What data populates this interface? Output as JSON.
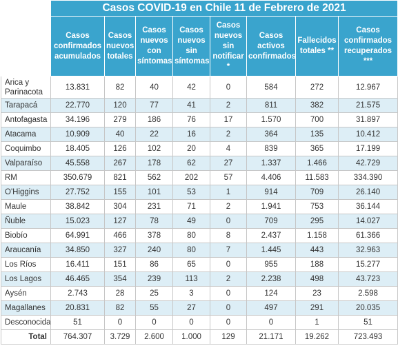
{
  "title": "Casos COVID-19 en Chile 11 de Febrero de 2021",
  "headers": [
    "Casos confirmados acumulados",
    "Casos nuevos totales",
    "Casos nuevos con síntomas",
    "Casos nuevos sin síntomas",
    "Casos nuevos sin notificar *",
    "Casos activos confirmados",
    "Fallecidos totales **",
    "Casos confirmados recuperados ***"
  ],
  "rows": [
    {
      "region": "Arica y Parinacota",
      "values": [
        "13.831",
        "82",
        "40",
        "42",
        "0",
        "584",
        "272",
        "12.967"
      ]
    },
    {
      "region": "Tarapacá",
      "values": [
        "22.770",
        "120",
        "77",
        "41",
        "2",
        "811",
        "382",
        "21.575"
      ]
    },
    {
      "region": "Antofagasta",
      "values": [
        "34.196",
        "279",
        "186",
        "76",
        "17",
        "1.570",
        "700",
        "31.897"
      ]
    },
    {
      "region": "Atacama",
      "values": [
        "10.909",
        "40",
        "22",
        "16",
        "2",
        "364",
        "135",
        "10.412"
      ]
    },
    {
      "region": "Coquimbo",
      "values": [
        "18.405",
        "126",
        "102",
        "20",
        "4",
        "839",
        "365",
        "17.199"
      ]
    },
    {
      "region": "Valparaíso",
      "values": [
        "45.558",
        "267",
        "178",
        "62",
        "27",
        "1.337",
        "1.466",
        "42.729"
      ]
    },
    {
      "region": "RM",
      "values": [
        "350.679",
        "821",
        "562",
        "202",
        "57",
        "4.406",
        "11.583",
        "334.390"
      ]
    },
    {
      "region": "O'Higgins",
      "values": [
        "27.752",
        "155",
        "101",
        "53",
        "1",
        "914",
        "709",
        "26.140"
      ]
    },
    {
      "region": "Maule",
      "values": [
        "38.842",
        "304",
        "231",
        "71",
        "2",
        "1.941",
        "753",
        "36.144"
      ]
    },
    {
      "region": "Ñuble",
      "values": [
        "15.023",
        "127",
        "78",
        "49",
        "0",
        "709",
        "295",
        "14.027"
      ]
    },
    {
      "region": "Biobío",
      "values": [
        "64.991",
        "466",
        "378",
        "80",
        "8",
        "2.437",
        "1.158",
        "61.366"
      ]
    },
    {
      "region": "Araucanía",
      "values": [
        "34.850",
        "327",
        "240",
        "80",
        "7",
        "1.445",
        "443",
        "32.963"
      ]
    },
    {
      "region": "Los Ríos",
      "values": [
        "16.411",
        "151",
        "86",
        "65",
        "0",
        "955",
        "188",
        "15.277"
      ]
    },
    {
      "region": "Los Lagos",
      "values": [
        "46.465",
        "354",
        "239",
        "113",
        "2",
        "2.238",
        "498",
        "43.723"
      ]
    },
    {
      "region": "Aysén",
      "values": [
        "2.743",
        "28",
        "25",
        "3",
        "0",
        "124",
        "23",
        "2.598"
      ]
    },
    {
      "region": "Magallanes",
      "values": [
        "20.831",
        "82",
        "55",
        "27",
        "0",
        "497",
        "291",
        "20.035"
      ]
    },
    {
      "region": "Desconocida",
      "values": [
        "51",
        "0",
        "0",
        "0",
        "0",
        "0",
        "1",
        "51"
      ]
    }
  ],
  "total": {
    "region": "Total",
    "values": [
      "764.307",
      "3.729",
      "2.600",
      "1.000",
      "129",
      "21.171",
      "19.262",
      "723.493"
    ]
  },
  "colors": {
    "header_bg": "#3aa4cd",
    "alt_row_bg": "#ddeef6",
    "border": "#c6c6c6"
  }
}
